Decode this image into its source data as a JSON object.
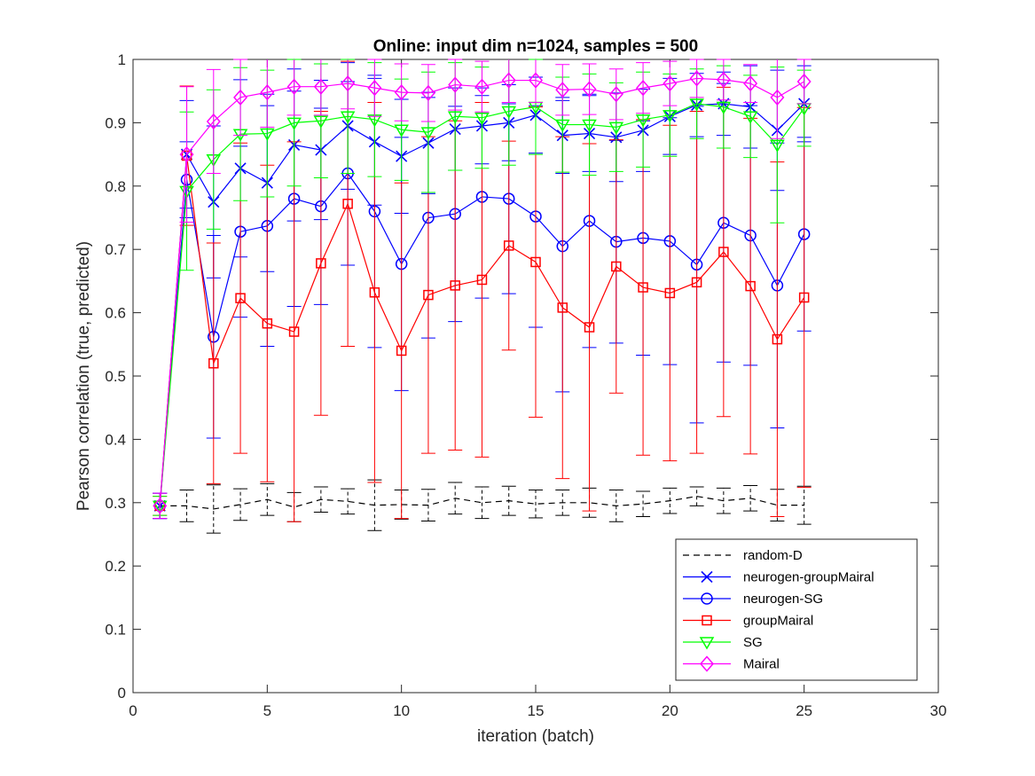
{
  "chart_data": {
    "type": "line",
    "title": "Online:  input dim n=1024, samples = 500",
    "xlabel": "iteration (batch)",
    "ylabel": "Pearson correlation (true, predicted)",
    "xlim": [
      0,
      30
    ],
    "ylim": [
      0,
      1
    ],
    "xticks": [
      0,
      5,
      10,
      15,
      20,
      25,
      30
    ],
    "yticks": [
      0,
      0.1,
      0.2,
      0.3,
      0.4,
      0.5,
      0.6,
      0.7,
      0.8,
      0.9,
      1
    ],
    "grid": false,
    "legend_position": "bottom-right",
    "x": [
      1,
      2,
      3,
      4,
      5,
      6,
      7,
      8,
      9,
      10,
      11,
      12,
      13,
      14,
      15,
      16,
      17,
      18,
      19,
      20,
      21,
      22,
      23,
      24,
      25
    ],
    "series": [
      {
        "name": "random-D",
        "color": "#000000",
        "dash": "dashed",
        "marker": "none",
        "values": [
          0.295,
          0.295,
          0.29,
          0.297,
          0.305,
          0.293,
          0.305,
          0.302,
          0.296,
          0.297,
          0.296,
          0.307,
          0.3,
          0.303,
          0.298,
          0.3,
          0.3,
          0.295,
          0.298,
          0.303,
          0.31,
          0.303,
          0.307,
          0.296,
          0.296
        ],
        "err": [
          0.02,
          0.025,
          0.038,
          0.025,
          0.025,
          0.023,
          0.02,
          0.02,
          0.04,
          0.023,
          0.025,
          0.025,
          0.025,
          0.023,
          0.022,
          0.02,
          0.023,
          0.025,
          0.02,
          0.02,
          0.015,
          0.02,
          0.02,
          0.025,
          0.03
        ]
      },
      {
        "name": "neurogen-groupMairal",
        "color": "#0000ff",
        "dash": "solid",
        "marker": "x",
        "values": [
          0.295,
          0.85,
          0.775,
          0.828,
          0.805,
          0.865,
          0.857,
          0.895,
          0.87,
          0.847,
          0.868,
          0.89,
          0.895,
          0.9,
          0.912,
          0.88,
          0.883,
          0.877,
          0.888,
          0.91,
          0.928,
          0.93,
          0.925,
          0.888,
          0.93
        ],
        "err": [
          0.02,
          0.085,
          0.12,
          0.14,
          0.14,
          0.12,
          0.11,
          0.1,
          0.1,
          0.09,
          0.08,
          0.065,
          0.06,
          0.06,
          0.06,
          0.06,
          0.06,
          0.07,
          0.065,
          0.06,
          0.05,
          0.05,
          0.065,
          0.095,
          0.06
        ]
      },
      {
        "name": "neurogen-SG",
        "color": "#0000ff",
        "dash": "solid",
        "marker": "circle",
        "values": [
          0.295,
          0.81,
          0.562,
          0.728,
          0.737,
          0.78,
          0.768,
          0.82,
          0.76,
          0.677,
          0.75,
          0.756,
          0.783,
          0.78,
          0.752,
          0.705,
          0.745,
          0.712,
          0.718,
          0.713,
          0.676,
          0.742,
          0.722,
          0.643,
          0.724
        ],
        "err": [
          0.02,
          0.06,
          0.16,
          0.135,
          0.19,
          0.17,
          0.155,
          0.145,
          0.215,
          0.2,
          0.19,
          0.17,
          0.16,
          0.15,
          0.175,
          0.23,
          0.2,
          0.16,
          0.185,
          0.195,
          0.25,
          0.22,
          0.205,
          0.225,
          0.153
        ]
      },
      {
        "name": "groupMairal",
        "color": "#ff0000",
        "dash": "solid",
        "marker": "square",
        "values": [
          0.295,
          0.848,
          0.52,
          0.623,
          0.583,
          0.57,
          0.678,
          0.772,
          0.632,
          0.54,
          0.628,
          0.643,
          0.652,
          0.706,
          0.68,
          0.608,
          0.577,
          0.673,
          0.64,
          0.631,
          0.648,
          0.696,
          0.642,
          0.558,
          0.624
        ],
        "err": [
          0.015,
          0.11,
          0.19,
          0.245,
          0.25,
          0.3,
          0.24,
          0.225,
          0.3,
          0.265,
          0.25,
          0.26,
          0.28,
          0.165,
          0.245,
          0.27,
          0.29,
          0.2,
          0.265,
          0.265,
          0.27,
          0.26,
          0.265,
          0.28,
          0.3
        ]
      },
      {
        "name": "SG",
        "color": "#00ff00",
        "dash": "solid",
        "marker": "triangle-down",
        "values": [
          0.295,
          0.792,
          0.842,
          0.882,
          0.883,
          0.9,
          0.903,
          0.91,
          0.905,
          0.889,
          0.885,
          0.91,
          0.908,
          0.918,
          0.925,
          0.897,
          0.897,
          0.893,
          0.905,
          0.912,
          0.93,
          0.925,
          0.91,
          0.865,
          0.923
        ],
        "err": [
          0.015,
          0.125,
          0.11,
          0.105,
          0.1,
          0.1,
          0.09,
          0.09,
          0.09,
          0.08,
          0.095,
          0.085,
          0.08,
          0.085,
          0.075,
          0.075,
          0.08,
          0.07,
          0.075,
          0.065,
          0.055,
          0.065,
          0.065,
          0.123,
          0.06
        ]
      },
      {
        "name": "Mairal",
        "color": "#ff00ff",
        "dash": "solid",
        "marker": "diamond",
        "values": [
          0.295,
          0.85,
          0.902,
          0.94,
          0.948,
          0.957,
          0.957,
          0.962,
          0.955,
          0.948,
          0.947,
          0.96,
          0.957,
          0.967,
          0.967,
          0.952,
          0.953,
          0.945,
          0.955,
          0.962,
          0.97,
          0.968,
          0.962,
          0.94,
          0.965
        ],
        "err": [
          0.02,
          0.107,
          0.082,
          0.06,
          0.055,
          0.045,
          0.045,
          0.04,
          0.045,
          0.045,
          0.045,
          0.04,
          0.04,
          0.035,
          0.035,
          0.04,
          0.04,
          0.04,
          0.04,
          0.035,
          0.03,
          0.032,
          0.03,
          0.065,
          0.035
        ]
      }
    ]
  }
}
